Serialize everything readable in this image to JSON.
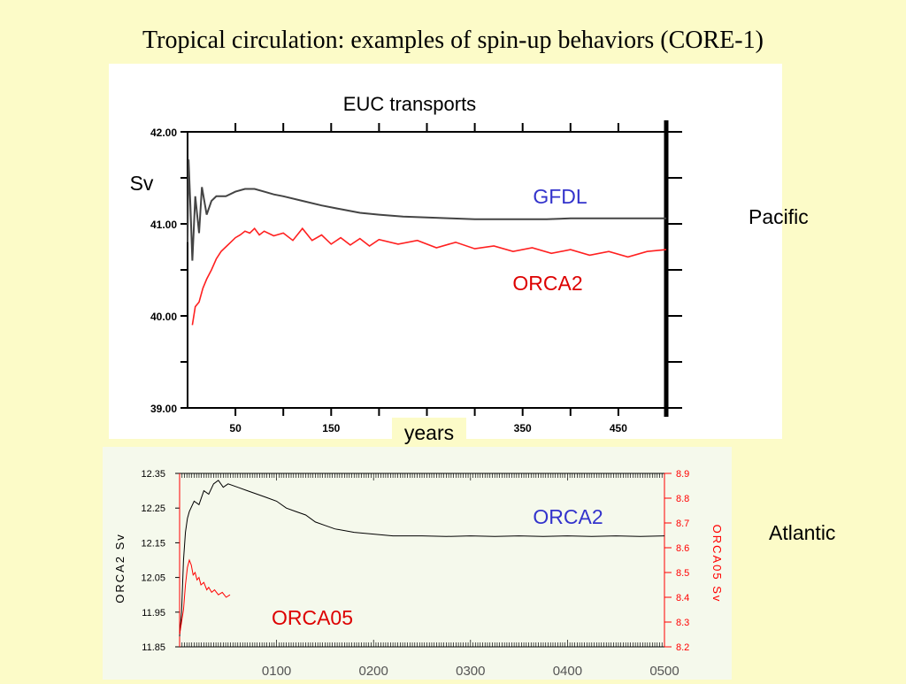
{
  "slide": {
    "title": "Tropical circulation: examples of spin-up behaviors (CORE-1)",
    "pacific_label": "Pacific",
    "atlantic_label": "Atlantic"
  },
  "colors": {
    "background": "#fcfbc8",
    "gfdl": "#444444",
    "orca2_red": "#ff2020",
    "label_blue": "#3333cc",
    "label_red": "#dd0000"
  },
  "chart_data": [
    {
      "type": "line",
      "title": "EUC transports",
      "xlabel": "years",
      "ylabel": "Sv",
      "xlim": [
        0,
        500
      ],
      "ylim": [
        39.0,
        42.0
      ],
      "y_ticks": [
        "42.00",
        "41.00",
        "40.00",
        "39.00"
      ],
      "x_ticks": [
        "50",
        "150",
        "350",
        "450"
      ],
      "grid": false,
      "series": [
        {
          "name": "GFDL",
          "color": "#444444",
          "x": [
            0,
            1,
            3,
            5,
            8,
            12,
            15,
            20,
            25,
            30,
            40,
            50,
            60,
            70,
            80,
            90,
            100,
            120,
            140,
            160,
            180,
            200,
            225,
            250,
            275,
            300,
            325,
            350,
            375,
            400,
            425,
            450,
            475,
            500
          ],
          "y": [
            40.8,
            41.7,
            41.2,
            40.6,
            41.3,
            40.9,
            41.4,
            41.1,
            41.25,
            41.3,
            41.3,
            41.35,
            41.38,
            41.38,
            41.35,
            41.32,
            41.3,
            41.25,
            41.2,
            41.16,
            41.12,
            41.1,
            41.08,
            41.07,
            41.06,
            41.05,
            41.05,
            41.05,
            41.05,
            41.06,
            41.06,
            41.06,
            41.06,
            41.06
          ]
        },
        {
          "name": "ORCA2",
          "color": "#ff2020",
          "x": [
            5,
            8,
            12,
            16,
            20,
            25,
            30,
            35,
            40,
            45,
            50,
            55,
            60,
            65,
            70,
            75,
            80,
            90,
            100,
            110,
            120,
            130,
            140,
            150,
            160,
            170,
            180,
            190,
            200,
            220,
            240,
            260,
            280,
            300,
            320,
            340,
            360,
            380,
            400,
            420,
            440,
            460,
            480,
            500
          ],
          "y": [
            39.9,
            40.1,
            40.15,
            40.3,
            40.4,
            40.5,
            40.62,
            40.7,
            40.75,
            40.8,
            40.85,
            40.88,
            40.92,
            40.9,
            40.95,
            40.88,
            40.92,
            40.87,
            40.9,
            40.82,
            40.95,
            40.82,
            40.88,
            40.78,
            40.85,
            40.77,
            40.84,
            40.76,
            40.83,
            40.78,
            40.82,
            40.74,
            40.8,
            40.73,
            40.76,
            40.7,
            40.74,
            40.68,
            40.72,
            40.66,
            40.7,
            40.64,
            40.7,
            40.72
          ]
        }
      ]
    },
    {
      "type": "line",
      "xlim": [
        0,
        500
      ],
      "ylim_left": [
        11.85,
        12.35
      ],
      "ylim_right": [
        8.2,
        8.9
      ],
      "ylabel_left": "ORCA2 Sv",
      "ylabel_right": "ORCA05 Sv",
      "y_ticks_left": [
        "12.35",
        "12.25",
        "12.15",
        "12.05",
        "11.95",
        "11.85"
      ],
      "y_ticks_right": [
        "8.9",
        "8.8",
        "8.7",
        "8.6",
        "8.5",
        "8.4",
        "8.3",
        "8.2"
      ],
      "x_ticks": [
        "0100",
        "0200",
        "0300",
        "0400",
        "0500"
      ],
      "grid": false,
      "series": [
        {
          "name": "ORCA2",
          "axis": "left",
          "color": "#000000",
          "x": [
            0,
            2,
            4,
            6,
            8,
            10,
            15,
            20,
            25,
            30,
            35,
            40,
            45,
            50,
            60,
            70,
            80,
            90,
            100,
            110,
            120,
            130,
            140,
            150,
            160,
            180,
            200,
            220,
            250,
            275,
            300,
            325,
            350,
            375,
            400,
            425,
            450,
            475,
            500
          ],
          "y": [
            11.88,
            11.95,
            12.1,
            12.18,
            12.22,
            12.24,
            12.27,
            12.26,
            12.3,
            12.29,
            12.32,
            12.33,
            12.31,
            12.32,
            12.31,
            12.3,
            12.29,
            12.28,
            12.27,
            12.25,
            12.24,
            12.23,
            12.21,
            12.2,
            12.19,
            12.18,
            12.175,
            12.17,
            12.17,
            12.168,
            12.17,
            12.168,
            12.17,
            12.168,
            12.17,
            12.168,
            12.17,
            12.168,
            12.17
          ]
        },
        {
          "name": "ORCA05",
          "axis": "right",
          "color": "#ff0000",
          "x": [
            0,
            2,
            4,
            6,
            8,
            10,
            12,
            14,
            16,
            18,
            20,
            22,
            25,
            28,
            30,
            33,
            36,
            40,
            44,
            48,
            52
          ],
          "y": [
            8.25,
            8.3,
            8.35,
            8.45,
            8.52,
            8.55,
            8.53,
            8.49,
            8.5,
            8.47,
            8.48,
            8.45,
            8.46,
            8.43,
            8.44,
            8.42,
            8.43,
            8.41,
            8.42,
            8.4,
            8.41
          ]
        }
      ],
      "labels": {
        "orca2": "ORCA2",
        "orca05": "ORCA05"
      }
    }
  ]
}
